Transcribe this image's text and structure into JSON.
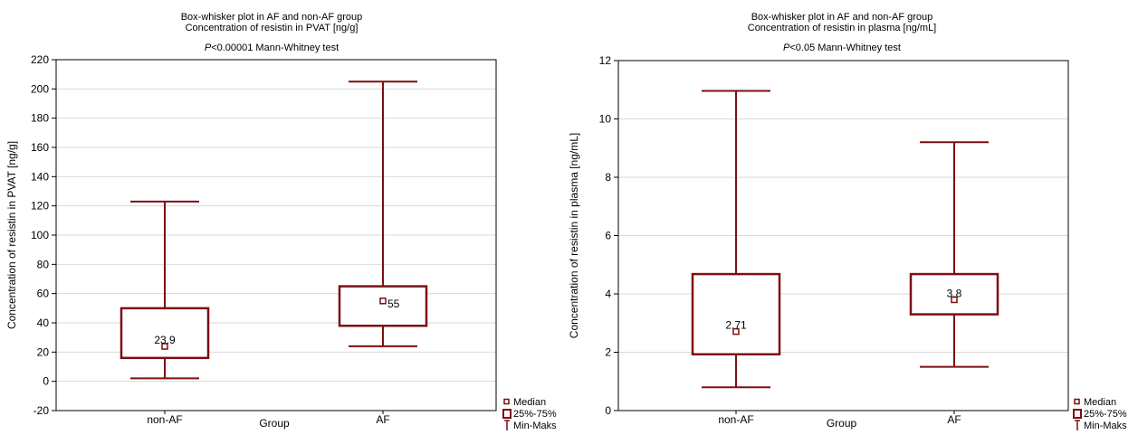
{
  "colors": {
    "box": "#7b0f12",
    "grid": "#d9d9d9",
    "frame": "#000000"
  },
  "legend": {
    "median": "Median",
    "box": "25%-75%",
    "whisker": "Min-Maks"
  },
  "chart_data": [
    {
      "type": "box",
      "title_lines": [
        "Box-whisker plot in AF and non-AF group",
        "Concentration of resistin in PVAT [ng/g]"
      ],
      "pvalue_italic": "P",
      "pvalue_rest": "<0.00001 Mann-Whitney test",
      "xlabel": "Group",
      "ylabel": "Concentration of resistin in PVAT [ng/g]",
      "ylim": [
        -20,
        220
      ],
      "yticks": [
        -20,
        0,
        20,
        40,
        60,
        80,
        100,
        120,
        140,
        160,
        180,
        200,
        220
      ],
      "grid": true,
      "legend_position": "bottom-right outside",
      "categories": [
        "non-AF",
        "AF"
      ],
      "groups": [
        {
          "name": "non-AF",
          "min": 2,
          "q1": 16,
          "median": 23.9,
          "q3": 50,
          "max": 123,
          "label": "23.9"
        },
        {
          "name": "AF",
          "min": 24,
          "q1": 38,
          "median": 55,
          "q3": 65,
          "max": 205,
          "label": "55"
        }
      ]
    },
    {
      "type": "box",
      "title_lines": [
        "Box-whisker plot in AF and non-AF group",
        "Concentration of resistin in plasma [ng/mL]"
      ],
      "pvalue_italic": "P",
      "pvalue_rest": "<0.05 Mann-Whitney test",
      "xlabel": "Group",
      "ylabel": "Concentration of resistin in plasma [ng/mL]",
      "ylim": [
        0,
        12
      ],
      "yticks": [
        0,
        2,
        4,
        6,
        8,
        10,
        12
      ],
      "grid": true,
      "legend_position": "bottom-right outside",
      "categories": [
        "non-AF",
        "AF"
      ],
      "groups": [
        {
          "name": "non-AF",
          "min": 0.8,
          "q1": 1.93,
          "median": 2.71,
          "q3": 4.68,
          "max": 10.96,
          "label": "2.71"
        },
        {
          "name": "AF",
          "min": 1.5,
          "q1": 3.3,
          "median": 3.8,
          "q3": 4.68,
          "max": 9.2,
          "label": "3.8"
        }
      ]
    }
  ]
}
